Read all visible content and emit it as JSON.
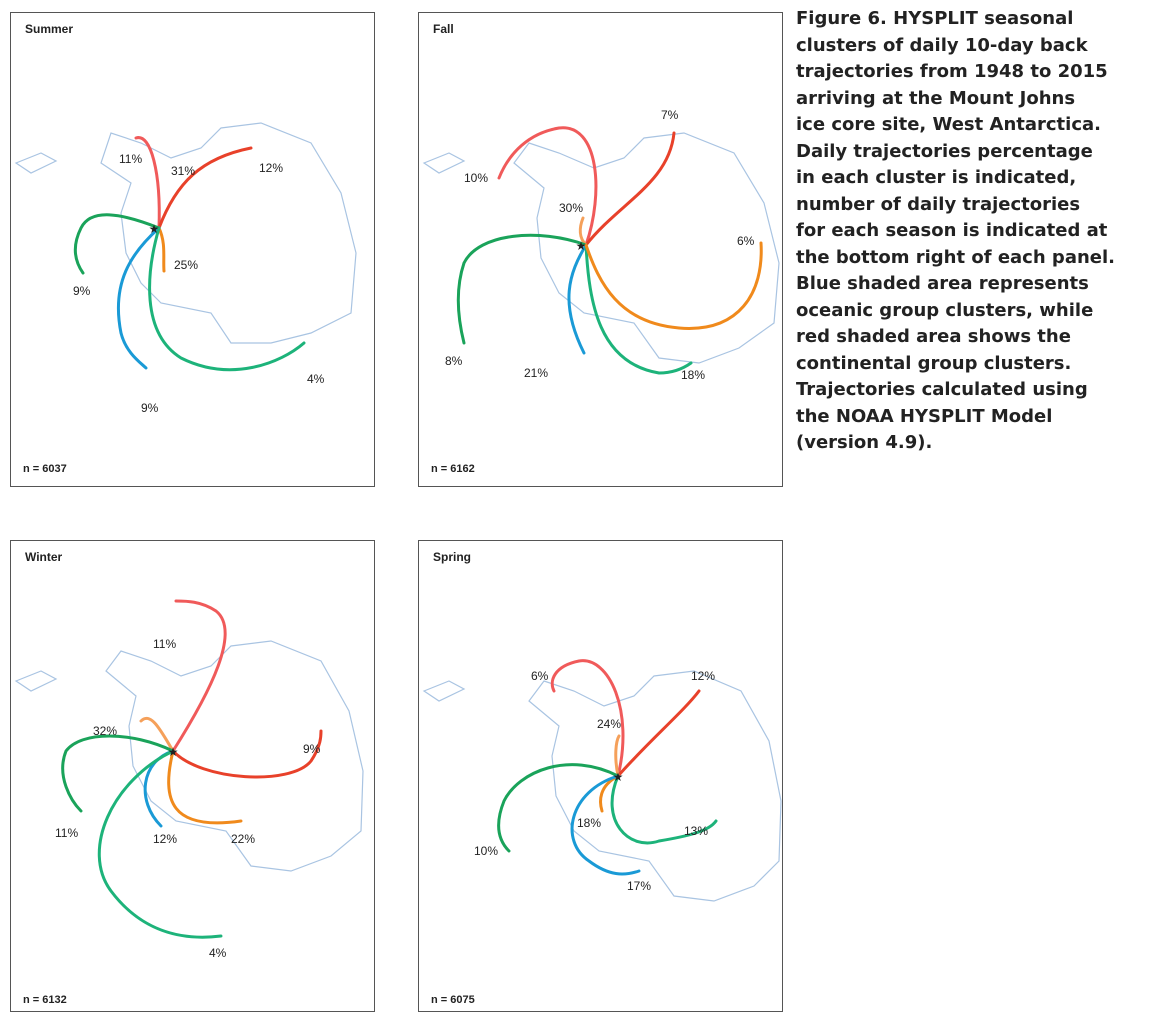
{
  "panels": [
    {
      "season": "Summer",
      "n": "n = 6037",
      "labels": [
        "11%",
        "31%",
        "12%",
        "25%",
        "9%",
        "4%",
        "9%"
      ]
    },
    {
      "season": "Fall",
      "n": "n = 6162",
      "labels": [
        "7%",
        "10%",
        "30%",
        "6%",
        "8%",
        "21%",
        "18%"
      ]
    },
    {
      "season": "Winter",
      "n": "n = 6132",
      "labels": [
        "11%",
        "32%",
        "9%",
        "11%",
        "12%",
        "22%",
        "4%"
      ]
    },
    {
      "season": "Spring",
      "n": "n = 6075",
      "labels": [
        "6%",
        "12%",
        "24%",
        "18%",
        "10%",
        "13%",
        "17%"
      ]
    }
  ],
  "caption": {
    "label": "Figure 6.",
    "lines": [
      "HYSPLIT seasonal",
      "clusters of daily 10-day back",
      "trajectories from 1948 to 2015",
      "arriving at the Mount Johns",
      "ice core site, West Antarctica.",
      "Daily trajectories percentage",
      "in each cluster is indicated,",
      "number of daily trajectories",
      "for each season is indicated at",
      "the bottom right of each panel.",
      "Blue shaded area represents",
      "oceanic group clusters, while",
      "red shaded area shows the",
      "continental group clusters.",
      "Trajectories calculated using",
      "the NOAA HYSPLIT Model",
      "(version 4.9)."
    ]
  }
}
